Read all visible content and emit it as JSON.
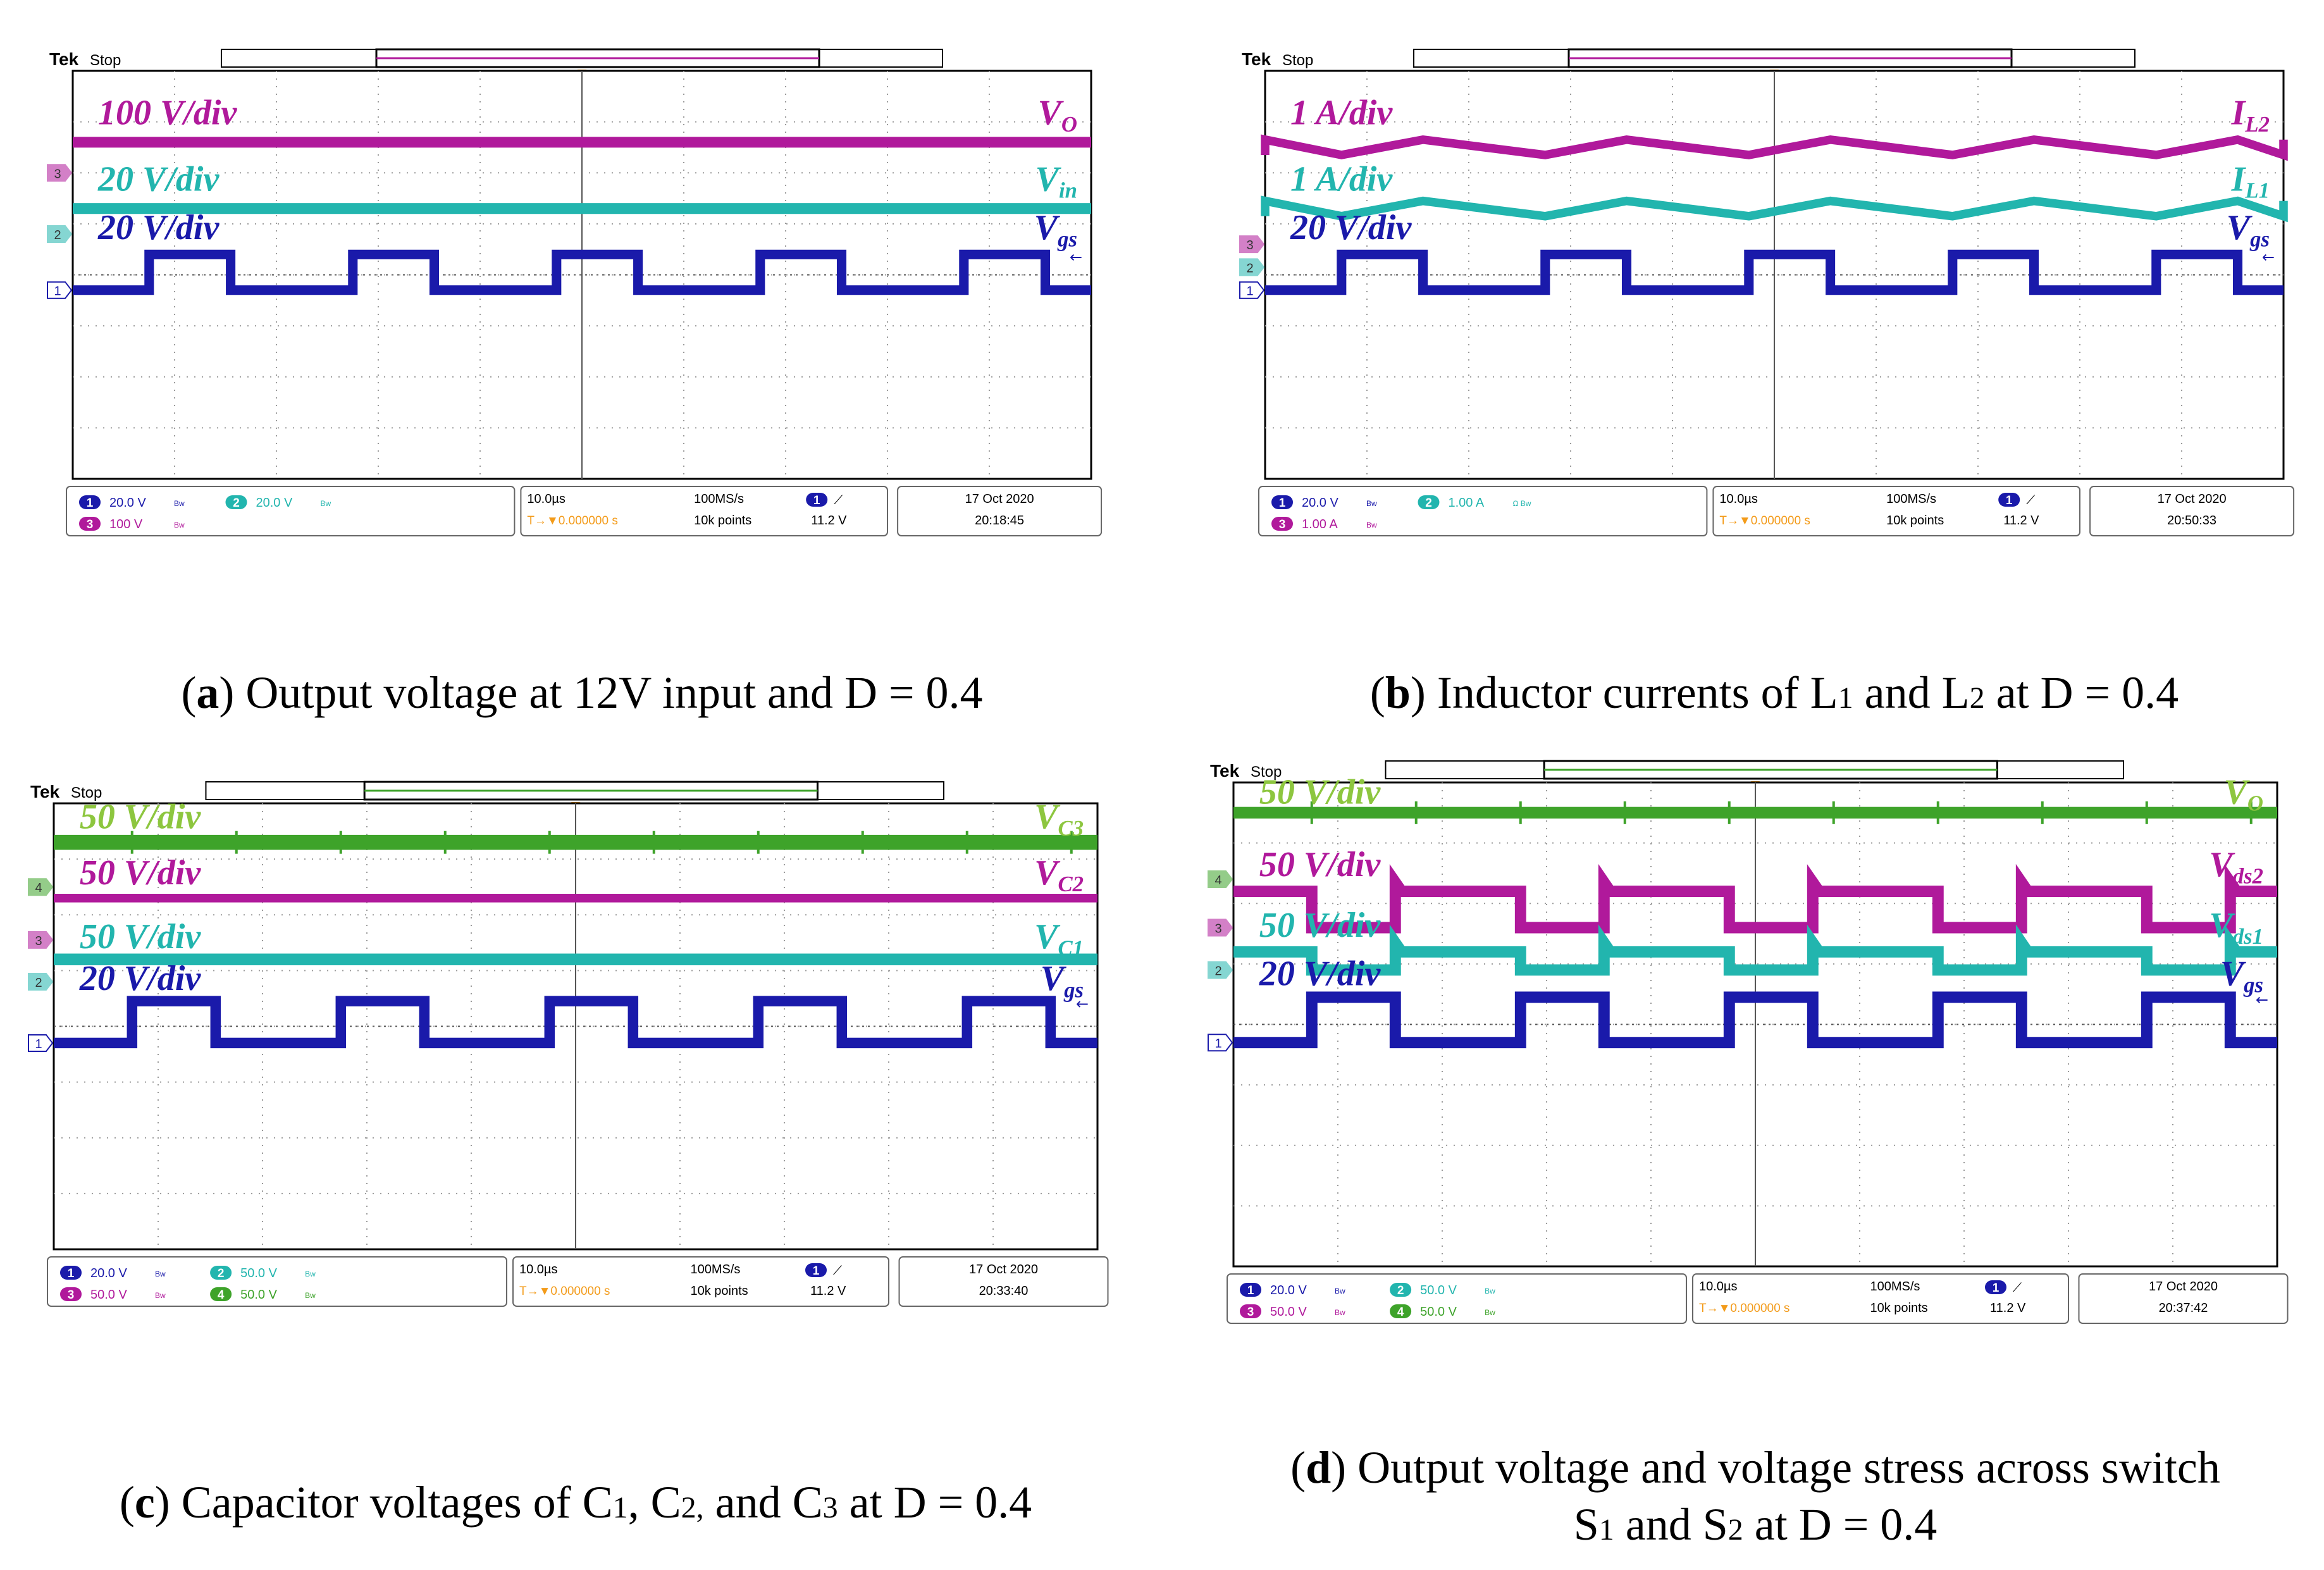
{
  "colors": {
    "ch1": "#1a1aaa",
    "ch2": "#22b5ae",
    "ch3": "#b0199b",
    "ch4": "#3ea32a",
    "ch4_label": "#8dc63f",
    "grid": "#9a9a9a",
    "frame": "#000000",
    "trigger": "#f39b1a"
  },
  "common": {
    "brand": "Tek",
    "state": "Stop",
    "trigger_marker": "T",
    "timebase": "10.0µs",
    "sample_rate": "100MS/s",
    "record_length": "10k points",
    "trig_offset": "T→▼0.000000 s",
    "trig_level": "11.2 V",
    "trig_source": "1",
    "edge_glyph": "⟋",
    "date": "17 Oct  2020",
    "bw_glyph": "Bw",
    "arrow_glyph": "←"
  },
  "chart_data": [
    {
      "id": "a",
      "type": "line",
      "title": "Output voltage at 12V input and D = 0.4",
      "x_unit": "µs",
      "x_range": [
        -50,
        50
      ],
      "time": "20:18:45",
      "channels": [
        {
          "n": "1",
          "scale": "20.0 V",
          "color": "ch1"
        },
        {
          "n": "2",
          "scale": "20.0 V",
          "color": "ch2"
        },
        {
          "n": "3",
          "scale": "100 V",
          "color": "ch3"
        }
      ],
      "markers": [
        {
          "n": "3",
          "color": "ch3",
          "level": 2.0
        },
        {
          "n": "2",
          "color": "ch2",
          "level": 0.8
        },
        {
          "n": "1",
          "color": "ch1",
          "level": -0.3
        }
      ],
      "series": [
        {
          "name": "V",
          "sub": "O",
          "scale_label": "100 V/div",
          "color": "ch3",
          "kind": "dc",
          "level": 2.6,
          "thick": 1.1,
          "label_level": 2.95
        },
        {
          "name": "V",
          "sub": "in",
          "scale_label": "20 V/div",
          "color": "ch2",
          "kind": "dc",
          "level": 1.3,
          "thick": 1.1,
          "label_level": 1.65
        },
        {
          "name": "V",
          "sub": "gs",
          "scale_label": "20 V/div",
          "color": "ch1",
          "kind": "pulse",
          "low": -0.3,
          "high": 0.4,
          "period": 20,
          "duty": 0.4,
          "start": -42.5,
          "thick": 1.2,
          "label_level": 0.7
        }
      ]
    },
    {
      "id": "b",
      "type": "line",
      "title": "Inductor currents of L1 and L2 at D = 0.4",
      "x_unit": "µs",
      "x_range": [
        -50,
        50
      ],
      "time": "20:50:33",
      "channels": [
        {
          "n": "1",
          "scale": "20.0 V",
          "color": "ch1"
        },
        {
          "n": "2",
          "scale": "1.00 A",
          "color": "ch2",
          "extra": "Ω Bw"
        },
        {
          "n": "3",
          "scale": "1.00 A",
          "color": "ch3"
        }
      ],
      "markers": [
        {
          "n": "3",
          "color": "ch3",
          "level": 0.6
        },
        {
          "n": "2",
          "color": "ch2",
          "level": 0.15
        },
        {
          "n": "1",
          "color": "ch1",
          "level": -0.3
        }
      ],
      "series": [
        {
          "name": "I",
          "sub": "L2",
          "scale_label": "1 A/div",
          "color": "ch3",
          "kind": "tri",
          "center": 2.5,
          "amp": 0.15,
          "period": 20,
          "duty": 0.4,
          "start": -42.5,
          "thick": 1.0,
          "label_level": 2.95
        },
        {
          "name": "I",
          "sub": "L1",
          "scale_label": "1 A/div",
          "color": "ch2",
          "kind": "tri",
          "center": 1.3,
          "amp": 0.15,
          "period": 20,
          "duty": 0.4,
          "start": -42.5,
          "thick": 1.0,
          "label_level": 1.65
        },
        {
          "name": "V",
          "sub": "gs",
          "scale_label": "20 V/div",
          "color": "ch1",
          "kind": "pulse",
          "low": -0.3,
          "high": 0.4,
          "period": 20,
          "duty": 0.4,
          "start": -42.5,
          "thick": 1.2,
          "label_level": 0.7
        }
      ]
    },
    {
      "id": "c",
      "type": "line",
      "title": "Capacitor voltages of C1, C2, and C3 at D = 0.4",
      "x_unit": "µs",
      "x_range": [
        -50,
        50
      ],
      "time": "20:33:40",
      "channels": [
        {
          "n": "1",
          "scale": "20.0 V",
          "color": "ch1"
        },
        {
          "n": "2",
          "scale": "50.0 V",
          "color": "ch2"
        },
        {
          "n": "3",
          "scale": "50.0 V",
          "color": "ch3"
        },
        {
          "n": "4",
          "scale": "50.0 V",
          "color": "ch4"
        }
      ],
      "markers": [
        {
          "n": "4",
          "color": "ch4",
          "level": 2.5
        },
        {
          "n": "3",
          "color": "ch3",
          "level": 1.55
        },
        {
          "n": "2",
          "color": "ch2",
          "level": 0.8
        },
        {
          "n": "1",
          "color": "ch1",
          "level": -0.3
        }
      ],
      "series": [
        {
          "name": "V",
          "sub": "C3",
          "scale_label": "50 V/div",
          "color": "ch4",
          "label_color": "ch4_label",
          "kind": "dc",
          "level": 3.3,
          "thick": 1.4,
          "spikes": true,
          "label_level": 3.55
        },
        {
          "name": "V",
          "sub": "C2",
          "scale_label": "50 V/div",
          "color": "ch3",
          "kind": "dc",
          "level": 2.3,
          "thick": 0.8,
          "label_level": 2.55
        },
        {
          "name": "V",
          "sub": "C1",
          "scale_label": "50 V/div",
          "color": "ch2",
          "kind": "dc",
          "level": 1.2,
          "thick": 1.1,
          "label_level": 1.4
        },
        {
          "name": "V",
          "sub": "gs",
          "scale_label": "20 V/div",
          "color": "ch1",
          "kind": "pulse",
          "low": -0.3,
          "high": 0.45,
          "period": 20,
          "duty": 0.4,
          "start": -42.5,
          "thick": 1.2,
          "label_level": 0.65
        }
      ]
    },
    {
      "id": "d",
      "type": "line",
      "title": "Output voltage and voltage stress across switch S1 and S2 at D = 0.4",
      "x_unit": "µs",
      "x_range": [
        -50,
        50
      ],
      "time": "20:37:42",
      "channels": [
        {
          "n": "1",
          "scale": "20.0 V",
          "color": "ch1"
        },
        {
          "n": "2",
          "scale": "50.0 V",
          "color": "ch2"
        },
        {
          "n": "3",
          "scale": "50.0 V",
          "color": "ch3"
        },
        {
          "n": "4",
          "scale": "50.0 V",
          "color": "ch4"
        }
      ],
      "markers": [
        {
          "n": "4",
          "color": "ch4",
          "level": 2.4
        },
        {
          "n": "3",
          "color": "ch3",
          "level": 1.6
        },
        {
          "n": "2",
          "color": "ch2",
          "level": 0.9
        },
        {
          "n": "1",
          "color": "ch1",
          "level": -0.3
        }
      ],
      "series": [
        {
          "name": "V",
          "sub": "O",
          "scale_label": "50 V/div",
          "color": "ch4",
          "label_color": "ch4_label",
          "kind": "dc",
          "level": 3.5,
          "thick": 1.0,
          "spikes": true,
          "label_level": 3.65
        },
        {
          "name": "V",
          "sub": "ds2",
          "scale_label": "50 V/div",
          "color": "ch3",
          "kind": "pulse",
          "low": 1.6,
          "high": 2.2,
          "invert": true,
          "overshoot": 0.15,
          "period": 20,
          "duty": 0.4,
          "start": -42.5,
          "thick": 1.2,
          "label_level": 2.45
        },
        {
          "name": "V",
          "sub": "ds1",
          "scale_label": "50 V/div",
          "color": "ch2",
          "kind": "pulse",
          "low": 0.9,
          "high": 1.2,
          "invert": true,
          "overshoot": 0.15,
          "period": 20,
          "duty": 0.4,
          "start": -42.5,
          "thick": 1.2,
          "label_level": 1.45
        },
        {
          "name": "V",
          "sub": "gs",
          "scale_label": "20 V/div",
          "color": "ch1",
          "kind": "pulse",
          "low": -0.3,
          "high": 0.45,
          "period": 20,
          "duty": 0.4,
          "start": -42.5,
          "thick": 1.2,
          "label_level": 0.65
        }
      ]
    }
  ],
  "captions": {
    "a": {
      "letter": "a",
      "text": "Output voltage at 12V input and D = 0.4"
    },
    "b": {
      "letter": "b",
      "pre": "Inductor currents of L",
      "s1": "1",
      "mid": " and L",
      "s2": "2",
      "post": " at D = 0.4"
    },
    "c": {
      "letter": "c",
      "pre": "Capacitor voltages of C",
      "s1": "1",
      "mid1": ", C",
      "s2": "2,",
      "mid2": " and C",
      "s3": "3",
      "post": " at D = 0.4"
    },
    "d": {
      "letter": "d",
      "line1": "Output voltage and voltage stress across switch",
      "pre2": "S",
      "s1": "1",
      "mid": " and S",
      "s2": "2",
      "post": " at D = 0.4"
    }
  }
}
